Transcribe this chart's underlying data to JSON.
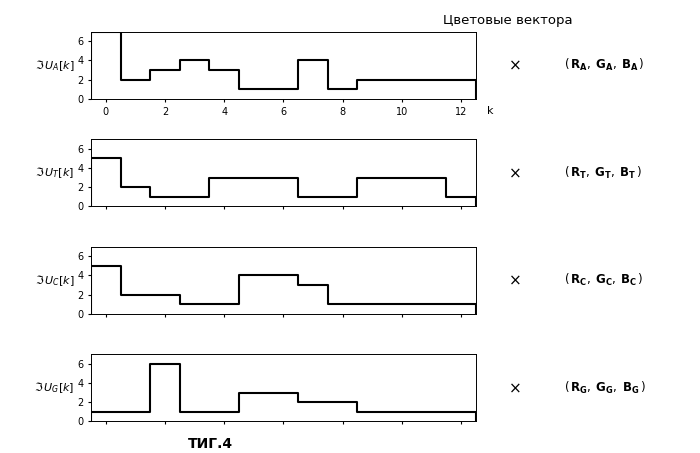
{
  "right_title": "Цветовые вектора",
  "fig_label": "ΤИГ.4",
  "ylim": [
    0,
    7
  ],
  "xlim": [
    -0.5,
    12.5
  ],
  "yticks": [
    0,
    2,
    4,
    6
  ],
  "xticks": [
    0,
    2,
    4,
    6,
    8,
    10,
    12
  ],
  "k_values": [
    0,
    1,
    2,
    3,
    4,
    5,
    6,
    7,
    8,
    9,
    10,
    11,
    12
  ],
  "UA": [
    7,
    2,
    3,
    4,
    3,
    1,
    1,
    4,
    1,
    2,
    2,
    2,
    2
  ],
  "UT": [
    5,
    2,
    1,
    1,
    3,
    3,
    3,
    1,
    1,
    3,
    3,
    3,
    1
  ],
  "UC": [
    5,
    2,
    2,
    1,
    1,
    4,
    4,
    3,
    1,
    1,
    1,
    1,
    1
  ],
  "UG": [
    1,
    1,
    6,
    1,
    1,
    3,
    3,
    2,
    2,
    1,
    1,
    1,
    1
  ],
  "color": "#000000",
  "bg_color": "#ffffff",
  "linewidth": 1.5
}
